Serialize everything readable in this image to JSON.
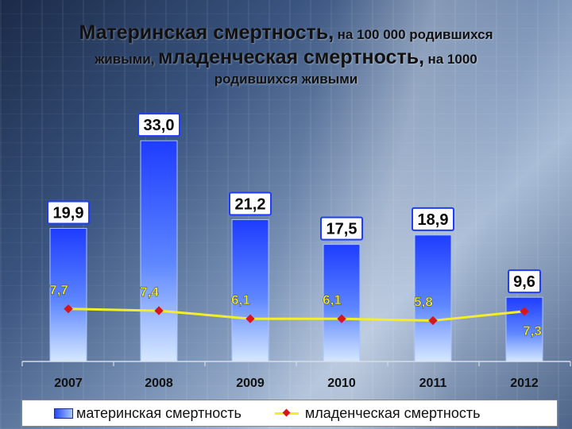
{
  "title": {
    "part1": "Материнская смертность,",
    "part2": "на 100 000 родившихся",
    "part3": "живыми,",
    "part4": "младенческая смертность,",
    "part5": "на 1000",
    "part6": "родившихся живыми"
  },
  "colors": {
    "bar_fill": "#2448ff",
    "line": "#f4ee2a",
    "marker": "#d8151f"
  },
  "chart_data": {
    "type": "bar",
    "categories": [
      "2007",
      "2008",
      "2009",
      "2010",
      "2011",
      "2012"
    ],
    "series": [
      {
        "name": "материнская смертность",
        "type": "bar",
        "values": [
          19.9,
          33.0,
          21.2,
          17.5,
          18.9,
          9.6
        ],
        "labels": [
          "19,9",
          "33,0",
          "21,2",
          "17,5",
          "18,9",
          "9,6"
        ]
      },
      {
        "name": "младенческая смертность",
        "type": "line",
        "values": [
          7.7,
          7.4,
          6.1,
          6.1,
          5.8,
          7.3
        ],
        "labels": [
          "7,7",
          "7,4",
          "6,1",
          "6,1",
          "5,8",
          "7,3"
        ]
      }
    ],
    "legend": {
      "position": "bottom"
    },
    "grid": false
  }
}
